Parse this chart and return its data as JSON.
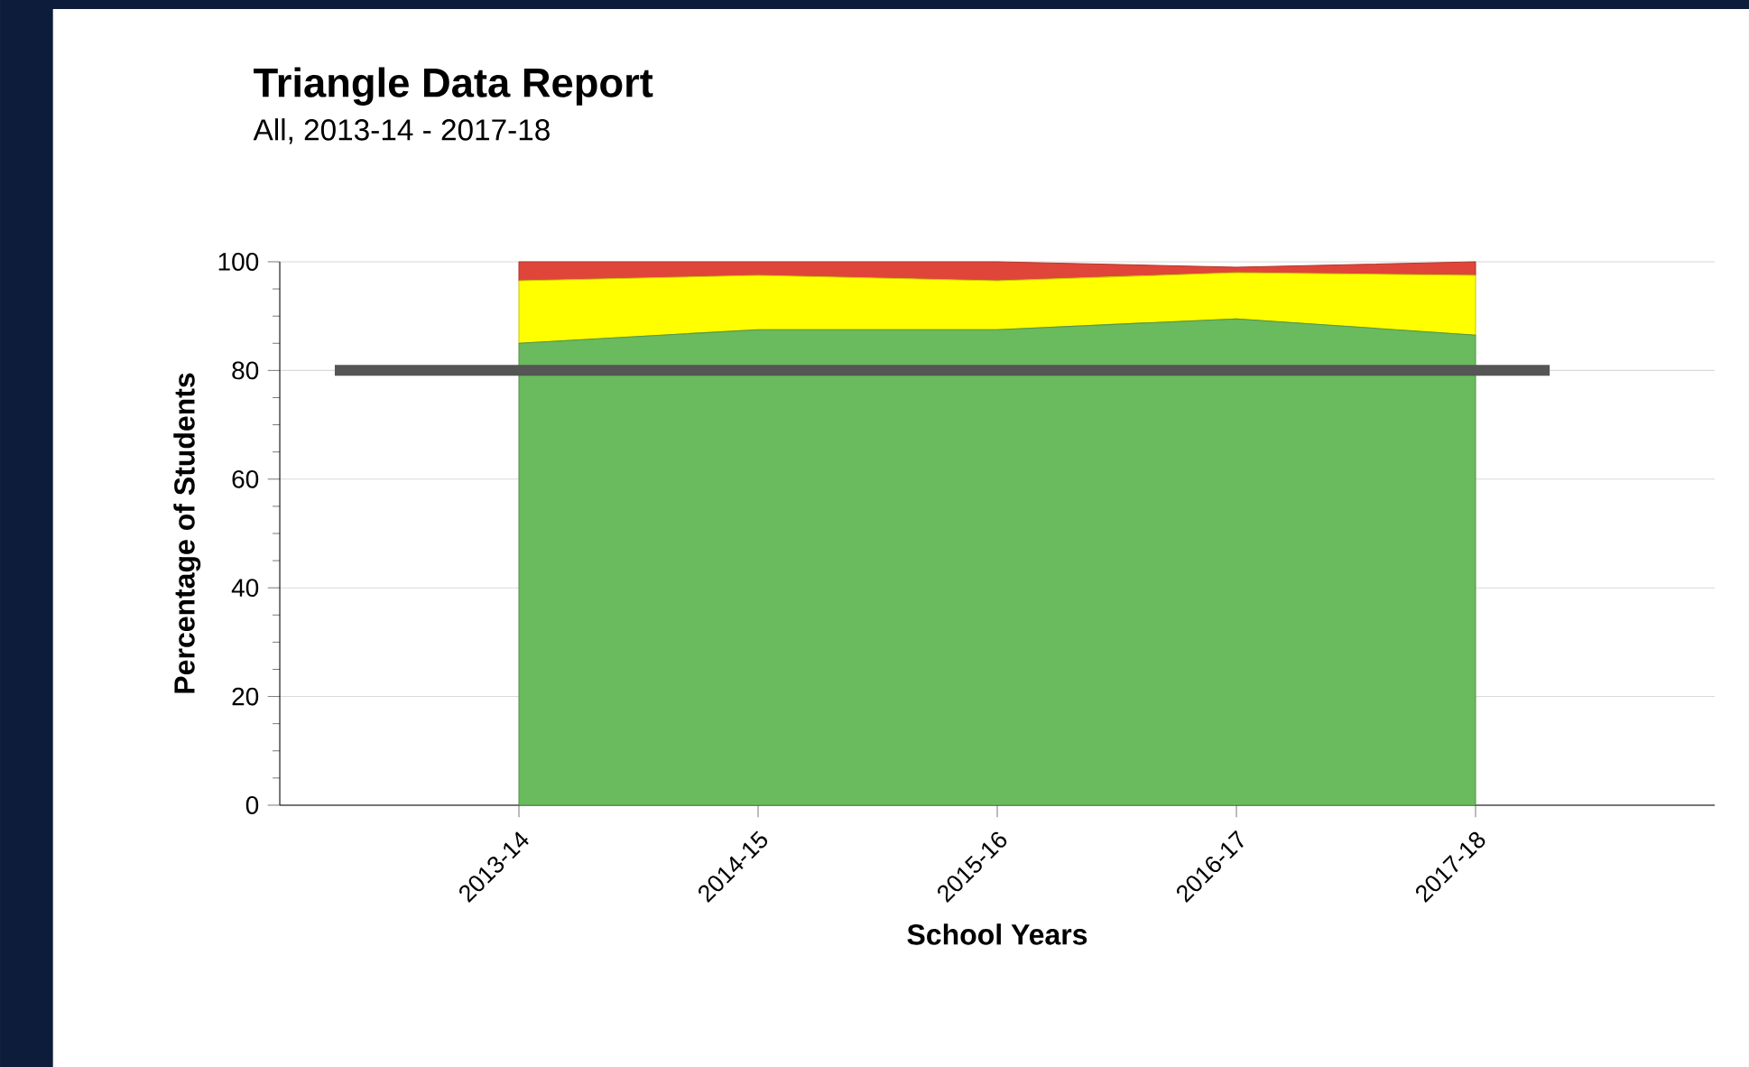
{
  "chart_data": {
    "type": "area",
    "title": "Triangle Data Report",
    "subtitle": "All, 2013-14 - 2017-18",
    "xlabel": "School Years",
    "ylabel": "Percentage of Students",
    "categories": [
      "2013-14",
      "2014-15",
      "2015-16",
      "2016-17",
      "2017-18"
    ],
    "stacked": true,
    "series": [
      {
        "color": "#6aba5e",
        "values": [
          85,
          87.5,
          87.5,
          89.5,
          86.5
        ]
      },
      {
        "color": "#ffff00",
        "values": [
          11.5,
          10,
          9,
          8.5,
          11
        ]
      },
      {
        "color": "#e0453a",
        "values": [
          3.5,
          2.5,
          3.5,
          1,
          2.5
        ]
      }
    ],
    "ylim": [
      0,
      100
    ],
    "yticks": [
      0,
      20,
      40,
      60,
      80,
      100
    ],
    "grid": "y",
    "ref_lines": [
      {
        "axis": "y",
        "value": 80,
        "color": "#555555"
      }
    ]
  }
}
